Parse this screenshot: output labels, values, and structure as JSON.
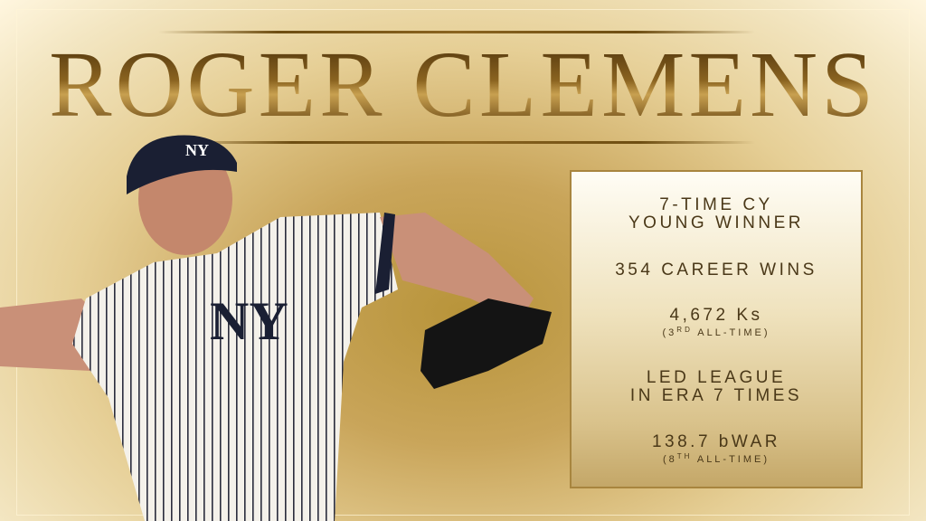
{
  "title": "ROGER CLEMENS",
  "cap_logo": "NY",
  "stats": [
    {
      "line1": "7-TIME CY",
      "line2": "YOUNG WINNER"
    },
    {
      "line1": "354 CAREER WINS"
    },
    {
      "line1": "4,672 Ks",
      "sub_pre": "(3",
      "sub_sup": "RD",
      "sub_post": " ALL-TIME)"
    },
    {
      "line1": "LED LEAGUE",
      "line2": "IN ERA 7 TIMES"
    },
    {
      "line1": "138.7 bWAR",
      "sub_pre": "(8",
      "sub_sup": "TH",
      "sub_post": " ALL-TIME)"
    }
  ],
  "colors": {
    "gold": "#c9a55a",
    "text": "#4a3818",
    "navy": "#1a1f33"
  }
}
